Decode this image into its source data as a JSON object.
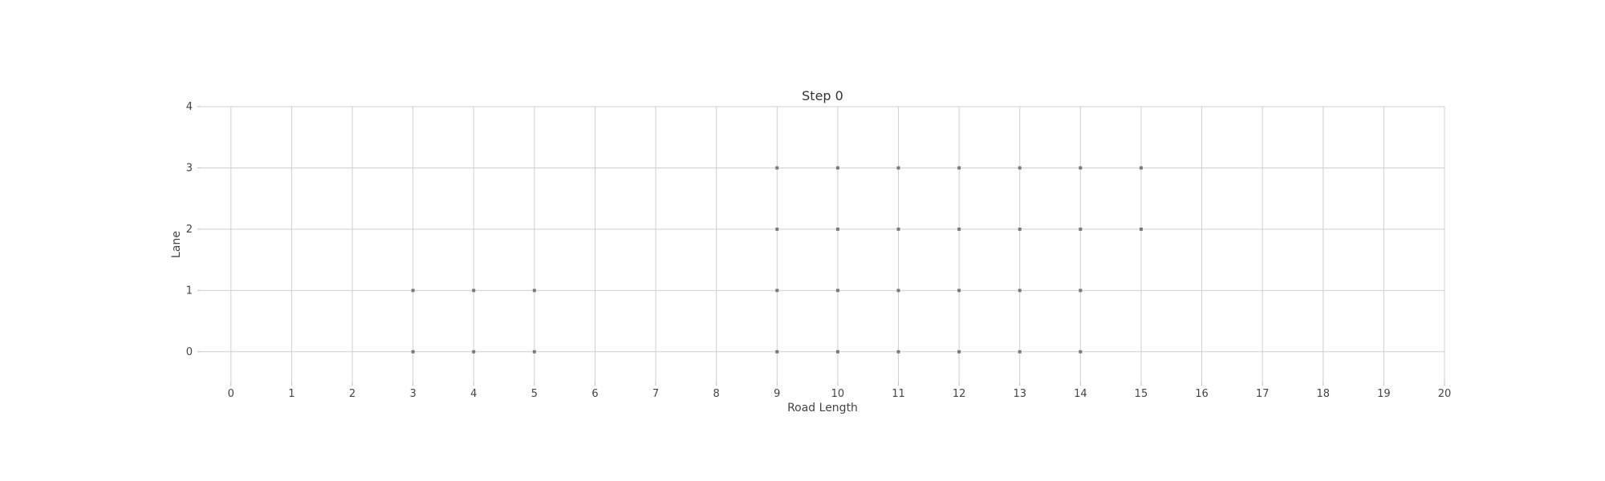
{
  "chart_data": {
    "type": "scatter",
    "title": "Step 0",
    "xlabel": "Road Length",
    "ylabel": "Lane",
    "xlim": [
      -0.5,
      20
    ],
    "ylim": [
      -0.5,
      4
    ],
    "x_ticks": [
      "0",
      "1",
      "2",
      "3",
      "4",
      "5",
      "6",
      "7",
      "8",
      "9",
      "10",
      "11",
      "12",
      "13",
      "14",
      "15",
      "16",
      "17",
      "18",
      "19",
      "20"
    ],
    "y_ticks": [
      "0",
      "1",
      "2",
      "3",
      "4"
    ],
    "grid": true,
    "colors": {
      "grid": "#cfcfcf",
      "point": "#7a7a7a",
      "axis": "#bbbbbb"
    },
    "series": [
      {
        "points": [
          {
            "x": 3,
            "y": 0
          },
          {
            "x": 4,
            "y": 0
          },
          {
            "x": 5,
            "y": 0
          },
          {
            "x": 9,
            "y": 0
          },
          {
            "x": 10,
            "y": 0
          },
          {
            "x": 11,
            "y": 0
          },
          {
            "x": 12,
            "y": 0
          },
          {
            "x": 13,
            "y": 0
          },
          {
            "x": 14,
            "y": 0
          },
          {
            "x": 3,
            "y": 1
          },
          {
            "x": 4,
            "y": 1
          },
          {
            "x": 5,
            "y": 1
          },
          {
            "x": 9,
            "y": 1
          },
          {
            "x": 10,
            "y": 1
          },
          {
            "x": 11,
            "y": 1
          },
          {
            "x": 12,
            "y": 1
          },
          {
            "x": 13,
            "y": 1
          },
          {
            "x": 14,
            "y": 1
          },
          {
            "x": 9,
            "y": 2
          },
          {
            "x": 10,
            "y": 2
          },
          {
            "x": 11,
            "y": 2
          },
          {
            "x": 12,
            "y": 2
          },
          {
            "x": 13,
            "y": 2
          },
          {
            "x": 14,
            "y": 2
          },
          {
            "x": 15,
            "y": 2
          },
          {
            "x": 9,
            "y": 3
          },
          {
            "x": 10,
            "y": 3
          },
          {
            "x": 11,
            "y": 3
          },
          {
            "x": 12,
            "y": 3
          },
          {
            "x": 13,
            "y": 3
          },
          {
            "x": 14,
            "y": 3
          },
          {
            "x": 15,
            "y": 3
          }
        ]
      }
    ]
  }
}
